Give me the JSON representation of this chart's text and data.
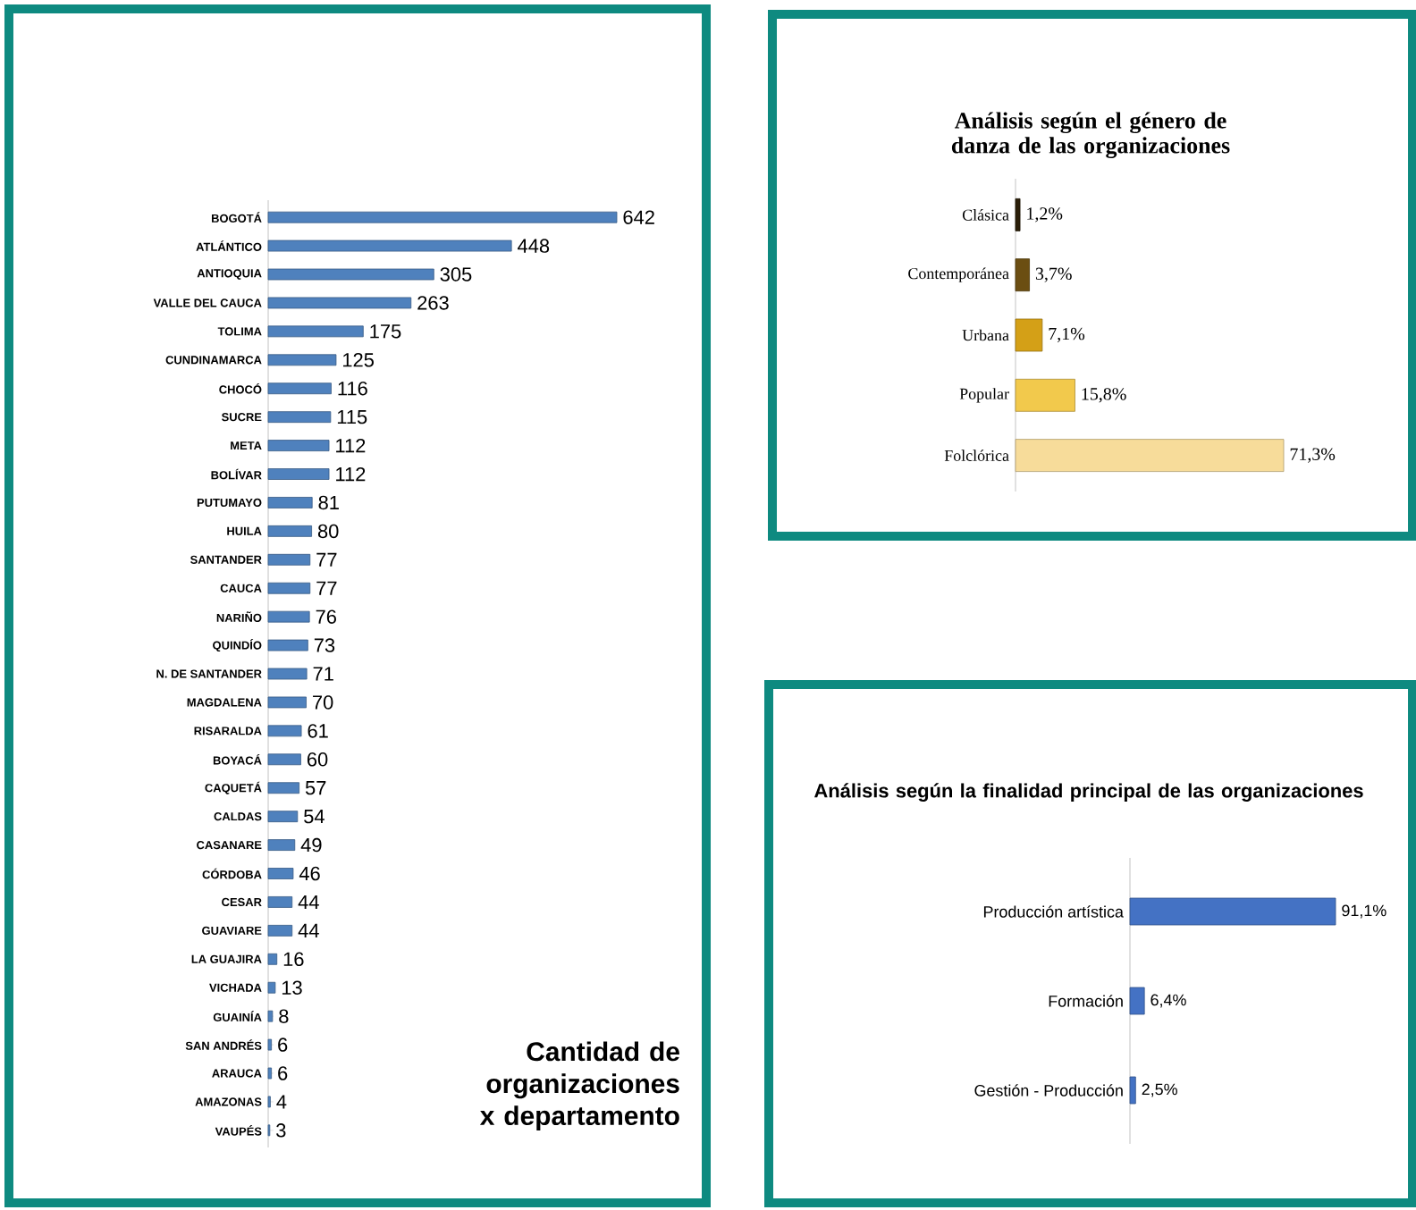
{
  "chart_data": [
    {
      "type": "bar",
      "orientation": "horizontal",
      "title": "Cantidad de organizaciones x departamento",
      "tick_labels": "y",
      "data_labels": true,
      "color": "#4f81bd",
      "categories": [
        "BOGOTÁ",
        "ATLÁNTICO",
        "ANTIOQUIA",
        "VALLE DEL CAUCA",
        "TOLIMA",
        "CUNDINAMARCA",
        "CHOCÓ",
        "SUCRE",
        "META",
        "BOLÍVAR",
        "PUTUMAYO",
        "HUILA",
        "SANTANDER",
        "CAUCA",
        "NARIÑO",
        "QUINDÍO",
        "N. DE SANTANDER",
        "MAGDALENA",
        "RISARALDA",
        "BOYACÁ",
        "CAQUETÁ",
        "CALDAS",
        "CASANARE",
        "CÓRDOBA",
        "CESAR",
        "GUAVIARE",
        "LA GUAJIRA",
        "VICHADA",
        "GUAINÍA",
        "SAN ANDRÉS",
        "ARAUCA",
        "AMAZONAS",
        "VAUPÉS"
      ],
      "values": [
        642,
        448,
        305,
        263,
        175,
        125,
        116,
        115,
        112,
        112,
        81,
        80,
        77,
        77,
        76,
        73,
        71,
        70,
        61,
        60,
        57,
        54,
        49,
        46,
        44,
        44,
        16,
        13,
        8,
        6,
        6,
        4,
        3
      ]
    },
    {
      "type": "bar",
      "orientation": "horizontal",
      "title": "Análisis según el género de danza de las organizaciones",
      "tick_labels": "y",
      "categories": [
        "Clásica",
        "Contemporánea",
        "Urbana",
        "Popular",
        "Folclórica"
      ],
      "values": [
        1.2,
        3.7,
        7.1,
        15.8,
        71.3
      ],
      "value_labels": [
        "1,2%",
        "3,7%",
        "7,1%",
        "15,8%",
        "71,3%"
      ],
      "colors": [
        "#2a1e08",
        "#6b4e12",
        "#d4a017",
        "#f2c94c",
        "#f7dc9a"
      ]
    },
    {
      "type": "bar",
      "orientation": "horizontal",
      "title": "Análisis según la finalidad principal de las organizaciones",
      "tick_labels": "y",
      "color": "#4472c4",
      "categories": [
        "Producción artística",
        "Formación",
        "Gestión - Producción"
      ],
      "values": [
        91.1,
        6.4,
        2.5
      ],
      "value_labels": [
        "91,1%",
        "6,4%",
        "2,5%"
      ]
    }
  ]
}
